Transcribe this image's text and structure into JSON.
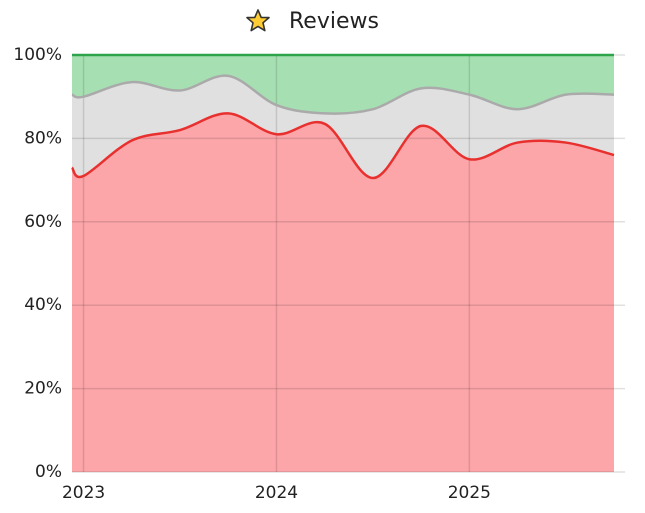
{
  "chart_data": {
    "type": "stacked_area",
    "title": "Reviews",
    "x": [
      2022.94,
      2023,
      2023.25,
      2023.5,
      2023.75,
      2024,
      2024.25,
      2024.5,
      2024.75,
      2025,
      2025.25,
      2025.5,
      2025.75
    ],
    "series": [
      {
        "color": "#e8302f",
        "fill": "#fca6a9",
        "values": [
          73,
          71,
          79.5,
          82,
          86,
          81,
          83.5,
          70.5,
          83,
          75,
          79,
          79,
          76
        ]
      },
      {
        "color": "#aaaaaa",
        "fill": "#e0e0e0",
        "values": [
          17.5,
          19,
          14,
          9.5,
          9,
          7,
          2.5,
          16.5,
          9,
          15.5,
          8,
          11.5,
          14.5
        ]
      },
      {
        "color": "#2ea44a",
        "fill": "#a6e0b2",
        "values": [
          9.5,
          10,
          6.5,
          8.5,
          5,
          12,
          14,
          13,
          8,
          9.5,
          13,
          9.5,
          9.5
        ]
      }
    ],
    "xlim": [
      2022.94,
      2025.75
    ],
    "xticks": [
      2023,
      2024,
      2025
    ],
    "ylim": [
      0,
      100
    ],
    "yticks": [
      {
        "value": 0,
        "label": "0%"
      },
      {
        "value": 20,
        "label": "20%"
      },
      {
        "value": 40,
        "label": "40%"
      },
      {
        "value": 60,
        "label": "60%"
      },
      {
        "value": 80,
        "label": "80%"
      },
      {
        "value": 100,
        "label": "100%"
      }
    ],
    "grid": true
  }
}
